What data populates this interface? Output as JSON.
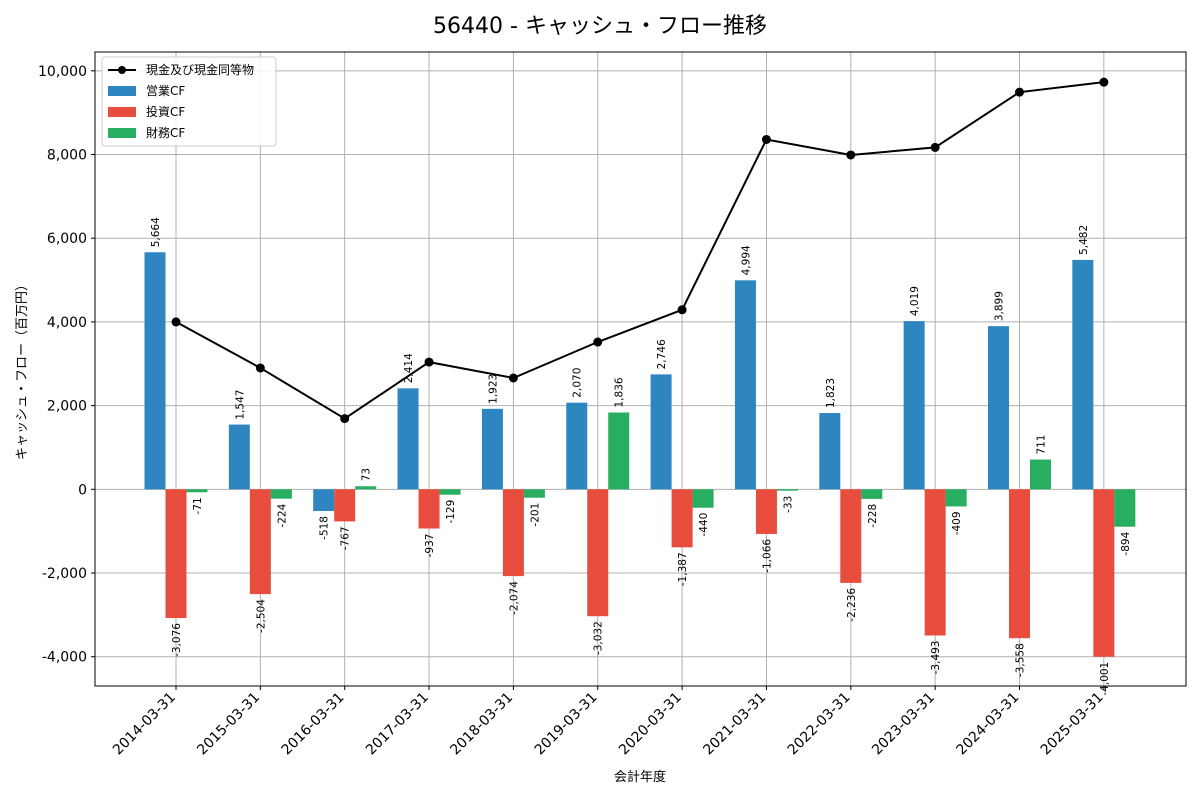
{
  "chart_data": {
    "type": "bar",
    "title": "56440 - キャッシュ・フロー推移",
    "xlabel": "会計年度",
    "ylabel": "キャッシュ・フロー（百万円）",
    "ylim": [
      -4700,
      10450
    ],
    "yticks": [
      -4000,
      -2000,
      0,
      2000,
      4000,
      6000,
      8000,
      10000
    ],
    "ytick_labels": [
      "-4,000",
      "-2,000",
      "0",
      "2,000",
      "4,000",
      "6,000",
      "8,000",
      "10,000"
    ],
    "grid": true,
    "legend_position": "top-left",
    "categories": [
      "2014-03-31",
      "2015-03-31",
      "2016-03-31",
      "2017-03-31",
      "2018-03-31",
      "2019-03-31",
      "2020-03-31",
      "2021-03-31",
      "2022-03-31",
      "2023-03-31",
      "2024-03-31",
      "2025-03-31"
    ],
    "series": [
      {
        "name": "営業CF",
        "kind": "bar",
        "color": "#2e86c1",
        "values": [
          5664,
          1547,
          -518,
          2414,
          1923,
          2070,
          2746,
          4994,
          1823,
          4019,
          3899,
          5482
        ],
        "labels": [
          "5,664",
          "1,547",
          "-518",
          "2,414",
          "1,923",
          "2,070",
          "2,746",
          "4,994",
          "1,823",
          "4,019",
          "3,899",
          "5,482"
        ]
      },
      {
        "name": "投資CF",
        "kind": "bar",
        "color": "#e74c3c",
        "values": [
          -3076,
          -2504,
          -767,
          -937,
          -2074,
          -3032,
          -1387,
          -1066,
          -2236,
          -3493,
          -3558,
          -4001
        ],
        "labels": [
          "-3,076",
          "-2,504",
          "-767",
          "-937",
          "-2,074",
          "-3,032",
          "-1,387",
          "-1,066",
          "-2,236",
          "-3,493",
          "-3,558",
          "-4,001"
        ]
      },
      {
        "name": "財務CF",
        "kind": "bar",
        "color": "#27ae60",
        "values": [
          -71,
          -224,
          73,
          -129,
          -201,
          1836,
          -440,
          -33,
          -228,
          -409,
          711,
          -894
        ],
        "labels": [
          "-71",
          "-224",
          "73",
          "-129",
          "-201",
          "1,836",
          "-440",
          "-33",
          "-228",
          "-409",
          "711",
          "-894"
        ]
      },
      {
        "name": "現金及び現金同等物",
        "kind": "line",
        "color": "#000000",
        "values": [
          4000,
          2900,
          1690,
          3040,
          2660,
          3520,
          4290,
          8360,
          7990,
          8170,
          9490,
          9730
        ]
      }
    ]
  }
}
